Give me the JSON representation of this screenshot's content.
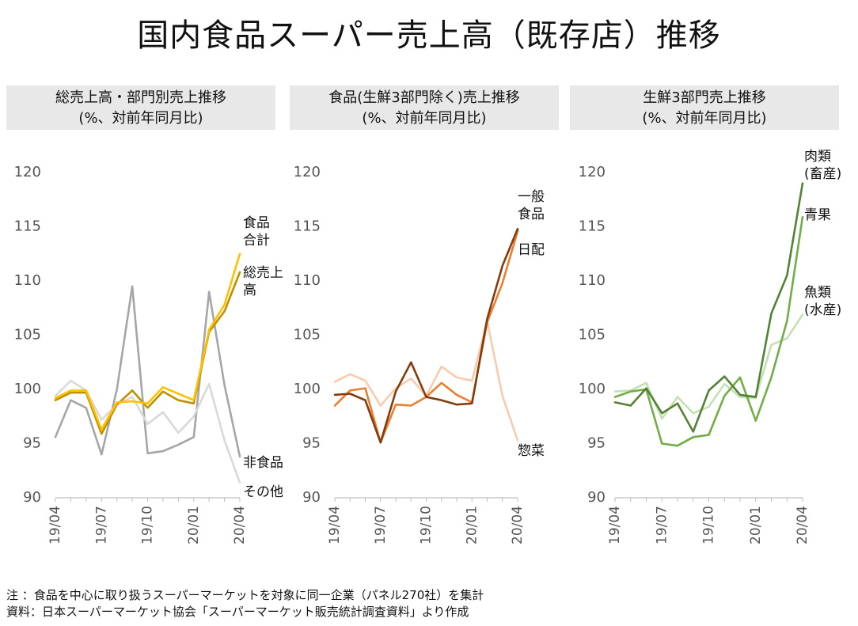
{
  "title": "国内食品スーパー売上高（既存店）推移",
  "panels": [
    {
      "header_line1": "総売上高・部門別売上推移",
      "header_line2": "(%、対前年同月比)"
    },
    {
      "header_line1": "食品(生鮮3部門除く)売上推移",
      "header_line2": "(%、対前年同月比)"
    },
    {
      "header_line1": "生鮮3部門売上推移",
      "header_line2": "(%、対前年同月比)"
    }
  ],
  "notes": {
    "line1": "注 ：食品を中心に取り扱うスーパーマーケットを対象に同一企業（パネル270社）を集計",
    "line2": "資料：日本スーパーマーケット協会「スーパーマーケット販売統計調査資料」より作成"
  },
  "chart_data": [
    {
      "type": "line",
      "title": "総売上高・部門別売上推移",
      "ylabel": "(%、対前年同月比)",
      "ylim": [
        90,
        120
      ],
      "yticks": [
        90,
        95,
        100,
        105,
        110,
        115,
        120
      ],
      "x": [
        "19/04",
        "19/05",
        "19/06",
        "19/07",
        "19/08",
        "19/09",
        "19/10",
        "19/11",
        "19/12",
        "20/01",
        "20/02",
        "20/03",
        "20/04"
      ],
      "xtick_labels": [
        "19/04",
        "19/07",
        "19/10",
        "20/01",
        "20/04"
      ],
      "grid": false,
      "series": [
        {
          "name": "非食品",
          "color": "#a6a6a6",
          "label_lines": [
            "非食品"
          ],
          "values": [
            95.6,
            99.0,
            98.3,
            94.0,
            100.0,
            109.5,
            94.1,
            94.3,
            94.9,
            95.6,
            109.0,
            100.4,
            93.8
          ]
        },
        {
          "name": "その他",
          "color": "#d9d9d9",
          "label_lines": [
            "その他"
          ],
          "values": [
            99.4,
            100.8,
            99.9,
            97.2,
            98.6,
            99.3,
            96.8,
            97.9,
            96.0,
            97.5,
            100.5,
            95.3,
            91.4
          ]
        },
        {
          "name": "総売上高",
          "color": "#bf9000",
          "label_lines": [
            "総売上",
            "高"
          ],
          "values": [
            99.0,
            99.7,
            99.7,
            95.9,
            98.6,
            99.9,
            98.3,
            99.8,
            99.0,
            98.7,
            105.3,
            107.2,
            110.8
          ]
        },
        {
          "name": "食品合計",
          "color": "#ffc000",
          "label_lines": [
            "食品",
            "合計"
          ],
          "values": [
            99.2,
            99.9,
            99.9,
            96.3,
            98.8,
            98.9,
            98.7,
            100.2,
            99.6,
            99.0,
            105.5,
            107.8,
            112.5
          ]
        }
      ]
    },
    {
      "type": "line",
      "title": "食品(生鮮3部門除く)売上推移",
      "ylabel": "(%、対前年同月比)",
      "ylim": [
        90,
        120
      ],
      "yticks": [
        90,
        95,
        100,
        105,
        110,
        115,
        120
      ],
      "x": [
        "19/04",
        "19/05",
        "19/06",
        "19/07",
        "19/08",
        "19/09",
        "19/10",
        "19/11",
        "19/12",
        "20/01",
        "20/02",
        "20/03",
        "20/04"
      ],
      "xtick_labels": [
        "19/04",
        "19/07",
        "19/10",
        "20/01",
        "20/04"
      ],
      "grid": false,
      "series": [
        {
          "name": "惣菜",
          "color": "#f8cbad",
          "label_lines": [
            "惣菜"
          ],
          "values": [
            100.7,
            101.4,
            100.8,
            98.5,
            100.1,
            101.0,
            99.4,
            102.1,
            101.1,
            100.8,
            106.3,
            99.4,
            95.3
          ]
        },
        {
          "name": "日配",
          "color": "#ed7d31",
          "label_lines": [
            "日配"
          ],
          "values": [
            98.5,
            99.9,
            100.1,
            95.1,
            98.6,
            98.5,
            99.3,
            100.6,
            99.5,
            98.8,
            106.2,
            109.8,
            114.6
          ]
        },
        {
          "name": "一般食品",
          "color": "#843c0c",
          "label_lines": [
            "一般",
            "食品"
          ],
          "values": [
            99.5,
            99.6,
            99.0,
            95.1,
            99.8,
            102.5,
            99.3,
            99.0,
            98.6,
            98.7,
            106.5,
            111.4,
            114.8
          ]
        }
      ]
    },
    {
      "type": "line",
      "title": "生鮮3部門売上推移",
      "ylabel": "(%、対前年同月比)",
      "ylim": [
        90,
        120
      ],
      "yticks": [
        90,
        95,
        100,
        105,
        110,
        115,
        120
      ],
      "x": [
        "19/04",
        "19/05",
        "19/06",
        "19/07",
        "19/08",
        "19/09",
        "19/10",
        "19/11",
        "19/12",
        "20/01",
        "20/02",
        "20/03",
        "20/04"
      ],
      "xtick_labels": [
        "19/04",
        "19/07",
        "19/10",
        "20/01",
        "20/04"
      ],
      "grid": false,
      "series": [
        {
          "name": "魚類(水産)",
          "color": "#c5e0b4",
          "label_lines": [
            "魚類",
            "(水産)"
          ],
          "values": [
            99.8,
            99.9,
            100.6,
            97.3,
            99.3,
            97.8,
            98.4,
            100.5,
            99.3,
            99.2,
            104.1,
            104.7,
            106.9
          ]
        },
        {
          "name": "青果",
          "color": "#70ad47",
          "label_lines": [
            "青果"
          ],
          "values": [
            99.3,
            99.8,
            100.0,
            95.0,
            94.8,
            95.6,
            95.8,
            99.4,
            101.1,
            97.1,
            101.1,
            106.3,
            115.9
          ]
        },
        {
          "name": "肉類(畜産)",
          "color": "#548235",
          "label_lines": [
            "肉類",
            "(畜産)"
          ],
          "values": [
            98.8,
            98.5,
            100.1,
            97.8,
            98.7,
            96.1,
            99.9,
            101.2,
            99.5,
            99.3,
            107.0,
            110.5,
            119.0
          ]
        }
      ]
    }
  ]
}
